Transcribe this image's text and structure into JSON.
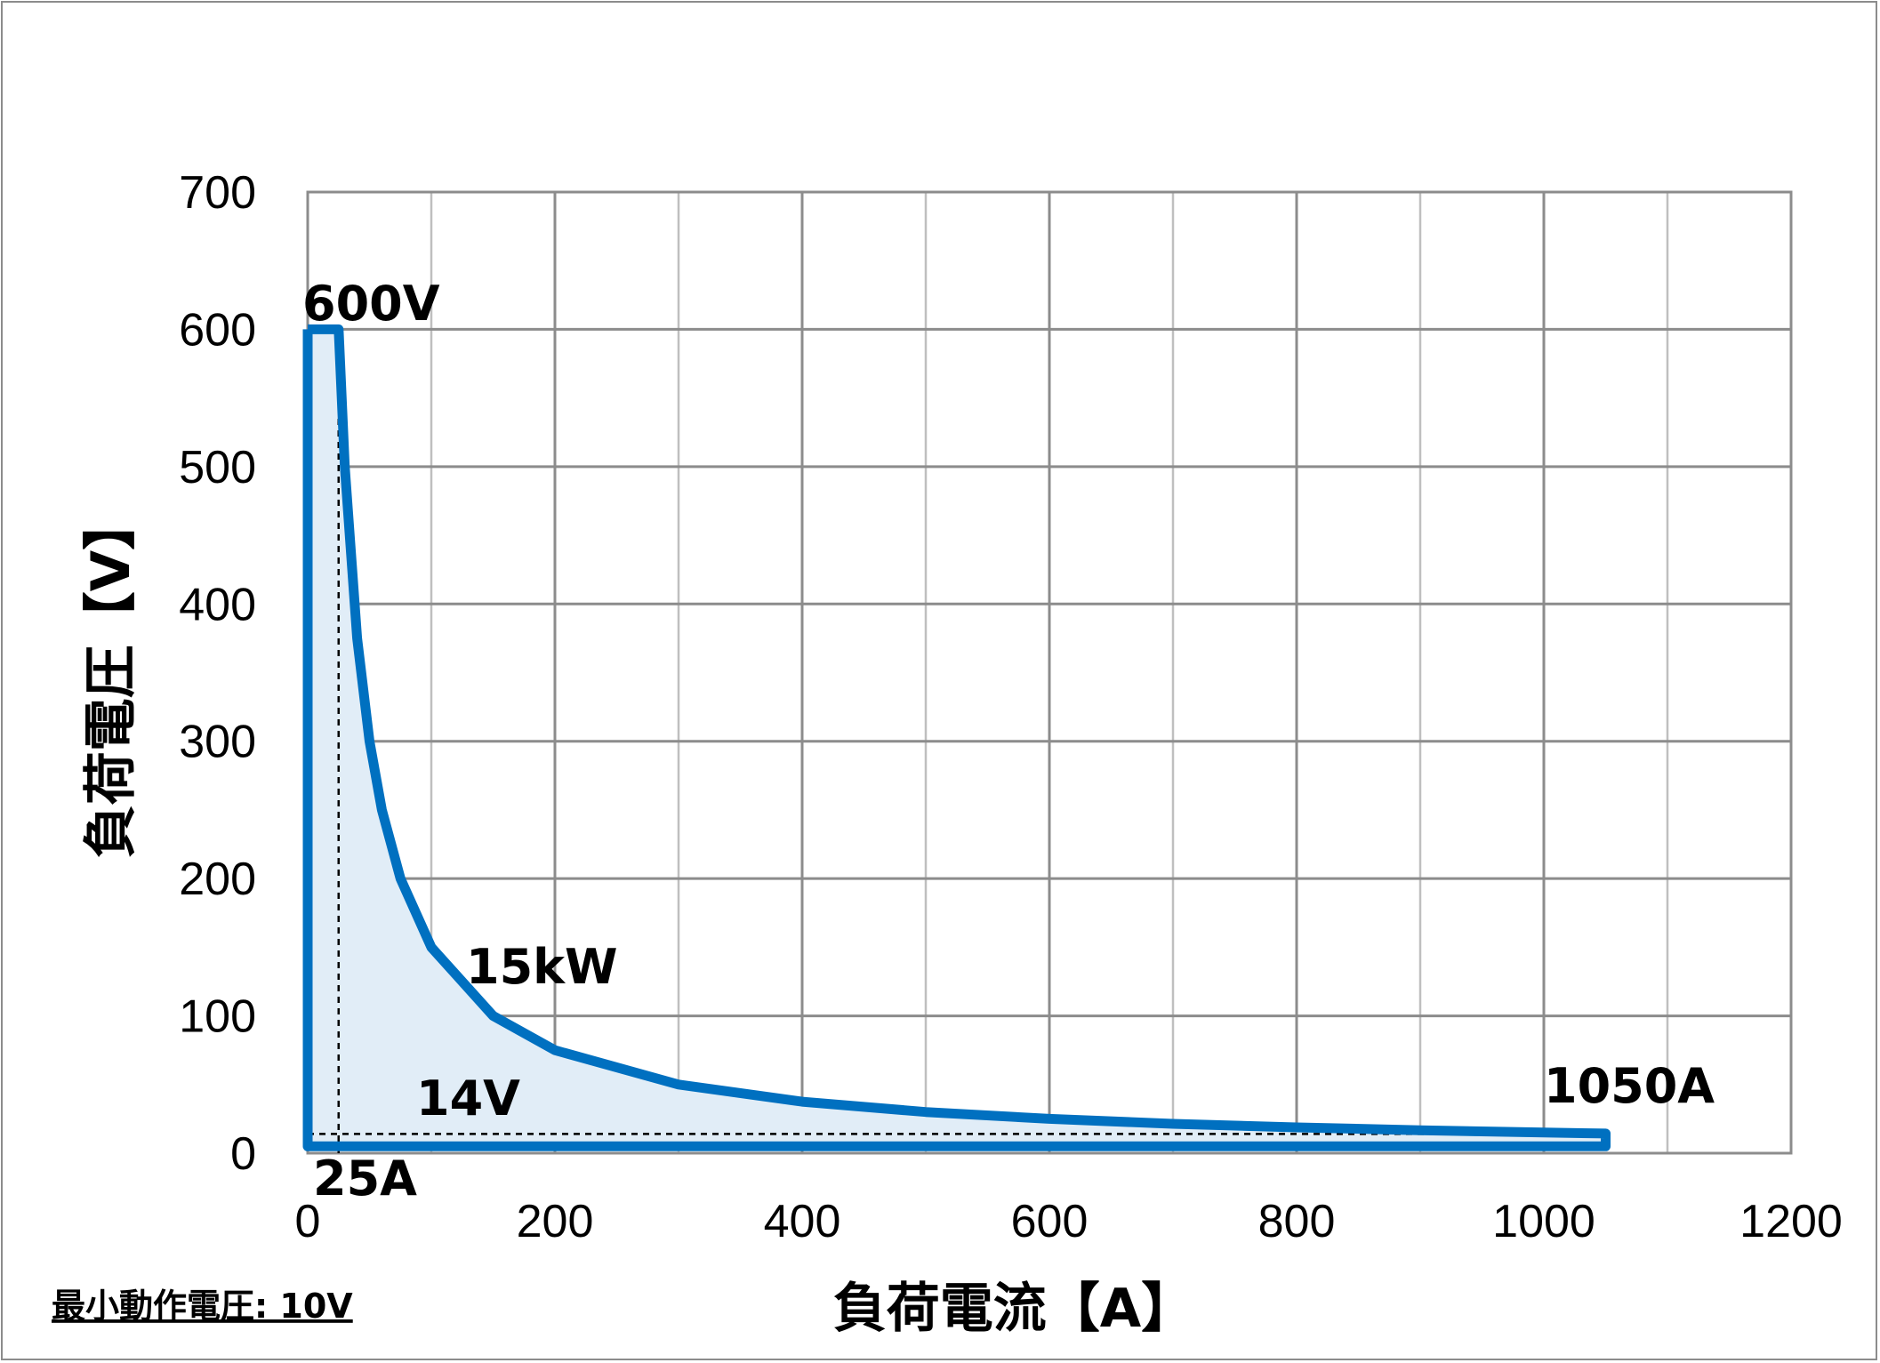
{
  "chart_data": {
    "type": "area",
    "title": "",
    "xlabel": "負荷電流【A】",
    "ylabel": "負荷電圧【V】",
    "xlim": [
      0,
      1200
    ],
    "ylim": [
      0,
      700
    ],
    "xticks": [
      0,
      200,
      400,
      600,
      800,
      1000,
      1200
    ],
    "xtick_labels": [
      "0",
      "200",
      "400",
      "600",
      "800",
      "1000",
      "1200"
    ],
    "yticks": [
      0,
      100,
      200,
      300,
      400,
      500,
      600,
      700
    ],
    "ytick_labels": [
      "0",
      "100",
      "200",
      "300",
      "400",
      "500",
      "600",
      "700"
    ],
    "grid": true,
    "legend": "none",
    "series": [
      {
        "color": "#0070c0",
        "fill": "#e1edf7",
        "x": [
          0,
          25,
          30,
          40,
          50,
          60,
          75,
          100,
          150,
          200,
          300,
          400,
          500,
          600,
          700,
          800,
          900,
          1000,
          1050,
          1050,
          0,
          0
        ],
        "y": [
          600,
          600,
          500,
          375,
          300,
          250,
          200,
          150,
          100,
          75,
          50,
          37.5,
          30,
          25,
          21.4,
          18.75,
          16.7,
          15,
          14.3,
          5,
          5,
          600
        ]
      }
    ],
    "reference_lines": [
      {
        "x": [
          25,
          25
        ],
        "y": [
          0,
          600
        ]
      },
      {
        "x": [
          0,
          1050
        ],
        "y": [
          14,
          14
        ]
      }
    ],
    "annotations": {
      "max_voltage": "600V",
      "power": "15kW",
      "min_voltage": "14V",
      "min_current": "25A",
      "max_current": "1050A"
    }
  },
  "footnote": "最小動作電圧: 10V"
}
